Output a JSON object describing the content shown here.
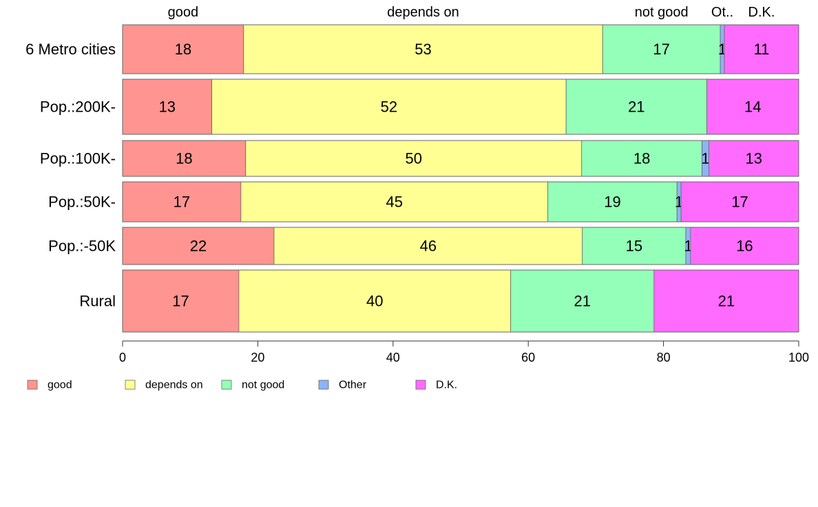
{
  "chart_data": {
    "type": "bar",
    "orientation": "horizontal",
    "stacked": true,
    "categories": [
      "6 Metro cities",
      "Pop.:200K-",
      "Pop.:100K-",
      "Pop.:50K-",
      "Pop.:-50K",
      "Rural"
    ],
    "series": [
      {
        "name": "good",
        "color": "#FF9490",
        "values": [
          17.9,
          13.2,
          18.2,
          17.5,
          22.4,
          17.2
        ]
      },
      {
        "name": "depends on",
        "color": "#FFFF94",
        "values": [
          53.1,
          52.4,
          49.7,
          45.4,
          45.6,
          40.2
        ]
      },
      {
        "name": "not good",
        "color": "#94FFB8",
        "values": [
          17.4,
          20.8,
          17.8,
          19.1,
          15.3,
          21.2
        ]
      },
      {
        "name": "Other",
        "color": "#8CB4F4",
        "values": [
          0.6,
          0.0,
          1.0,
          0.6,
          0.7,
          0.0
        ]
      },
      {
        "name": "D.K.",
        "color": "#FF6BFF",
        "values": [
          11.0,
          13.6,
          13.3,
          17.4,
          16.0,
          21.4
        ]
      }
    ],
    "data_labels": [
      [
        "18",
        "53",
        "17",
        "1",
        "11"
      ],
      [
        "13",
        "52",
        "21",
        "",
        "14"
      ],
      [
        "18",
        "50",
        "18",
        "1",
        "13"
      ],
      [
        "17",
        "45",
        "19",
        "1",
        "17"
      ],
      [
        "22",
        "46",
        "15",
        "1",
        "16"
      ],
      [
        "17",
        "40",
        "21",
        "",
        "21"
      ]
    ],
    "top_labels": [
      "good",
      "depends on",
      "not good",
      "Ot..",
      "D.K."
    ],
    "xlim": [
      0,
      100
    ],
    "xticks": [
      "0",
      "20",
      "40",
      "60",
      "80",
      "100"
    ],
    "legend": {
      "position": "bottom-left",
      "items": [
        "good",
        "depends on",
        "not good",
        "Other",
        "D.K."
      ]
    },
    "grid": false
  }
}
